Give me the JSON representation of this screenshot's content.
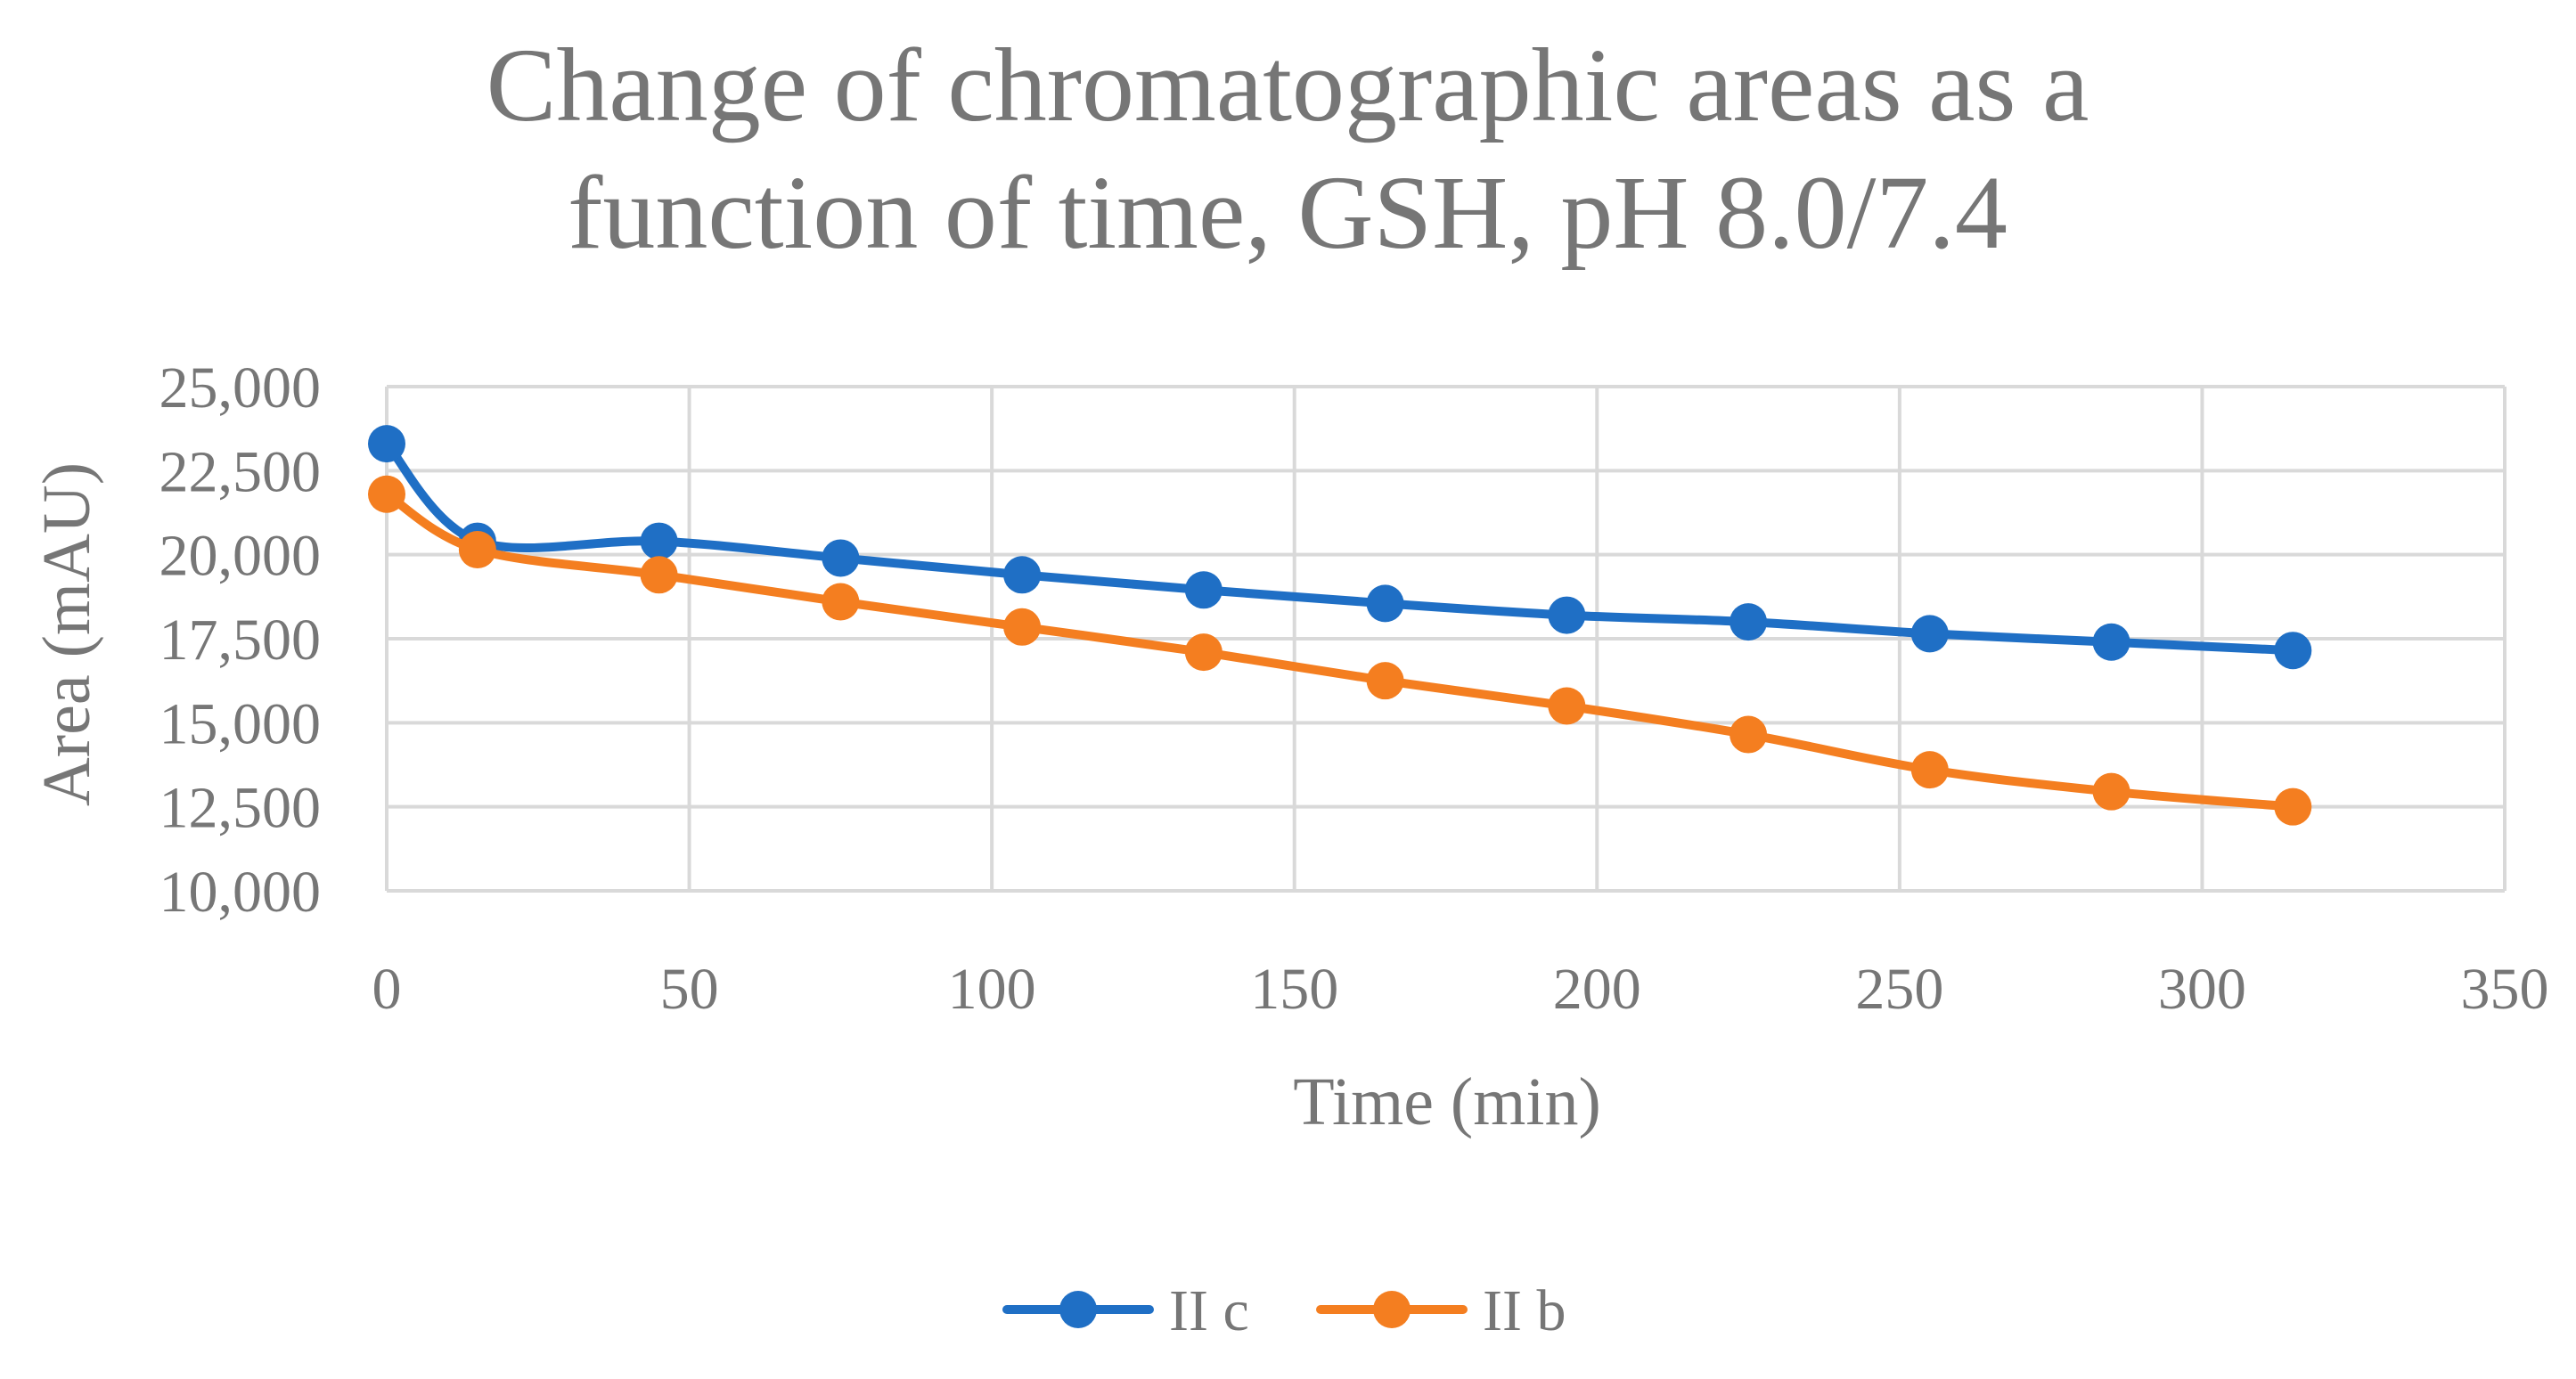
{
  "chart_data": {
    "type": "line",
    "title_lines": [
      "Change of chromatographic areas as a",
      "function of time, GSH, pH 8.0/7.4"
    ],
    "xlabel": "Time (min)",
    "ylabel": "Area (mAU)",
    "xlim": [
      0,
      350
    ],
    "ylim": [
      10000,
      25000
    ],
    "x_ticks": [
      0,
      50,
      100,
      150,
      200,
      250,
      300,
      350
    ],
    "x_tick_labels": [
      "0",
      "50",
      "100",
      "150",
      "200",
      "250",
      "300",
      "350"
    ],
    "y_ticks": [
      10000,
      12500,
      15000,
      17500,
      20000,
      22500,
      25000
    ],
    "y_tick_labels": [
      "10,000",
      "12,500",
      "15,000",
      "17,500",
      "20,000",
      "22,500",
      "25,000"
    ],
    "grid": true,
    "smooth": true,
    "legend_position": "bottom",
    "series": [
      {
        "name": "II c",
        "color": "#1f6fc5",
        "x": [
          0,
          15,
          45,
          75,
          105,
          135,
          165,
          195,
          225,
          255,
          285,
          315
        ],
        "y": [
          23300,
          20400,
          20400,
          19900,
          19400,
          18950,
          18550,
          18200,
          18000,
          17650,
          17400,
          17150
        ]
      },
      {
        "name": "II b",
        "color": "#f47e20",
        "x": [
          0,
          15,
          45,
          75,
          105,
          135,
          165,
          195,
          225,
          255,
          285,
          315
        ],
        "y": [
          21800,
          20150,
          19400,
          18600,
          17850,
          17100,
          16250,
          15500,
          14650,
          13600,
          12950,
          12500
        ]
      }
    ]
  }
}
